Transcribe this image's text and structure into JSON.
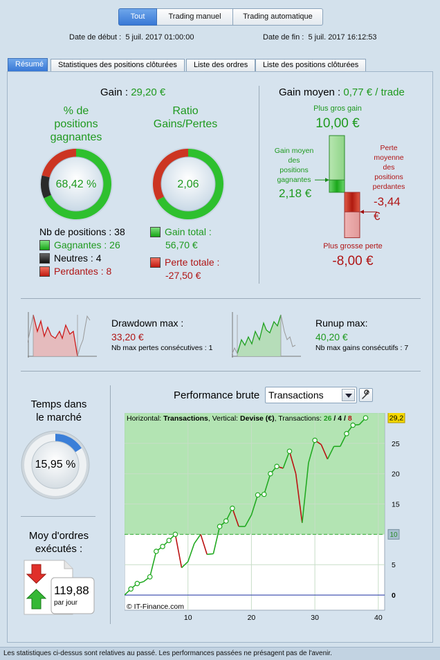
{
  "segments": [
    "Tout",
    "Trading manuel",
    "Trading automatique"
  ],
  "dates": {
    "start_label": "Date de début :",
    "start_value": "5 juil. 2017 01:00:00",
    "end_label": "Date de fin :",
    "end_value": "5 juil. 2017 16:12:53"
  },
  "tabs": [
    "Résumé",
    "Statistiques des positions clôturées",
    "Liste des ordres",
    "Liste des positions clôturées"
  ],
  "gain": {
    "label": "Gain",
    "value": "29,20 €"
  },
  "pct_win": {
    "title_l1": "% de",
    "title_l2": "positions",
    "title_l3": "gagnantes",
    "value": "68,42 %",
    "win": 26,
    "neutral": 4,
    "loss": 8
  },
  "ratio": {
    "title_l1": "Ratio",
    "title_l2": "Gains/Pertes",
    "value": "2,06",
    "gain_amount": 56.7,
    "loss_amount": 27.5
  },
  "positions": {
    "total_label": "Nb de positions : 38",
    "win_label": "Gagnantes : 26",
    "neutral_label": "Neutres : 4",
    "loss_label": "Perdantes : 8"
  },
  "totals": {
    "gain_label": "Gain total :",
    "gain_value": "56,70 €",
    "loss_label": "Perte totale :",
    "loss_value": "-27,50 €"
  },
  "avg_gain": {
    "label": "Gain moyen :",
    "value": "0,77 € / trade",
    "biggest_gain_label": "Plus gros gain",
    "biggest_gain_value": "10,00 €",
    "avg_win_l1": "Gain moyen",
    "avg_win_l2": "des",
    "avg_win_l3": "positions",
    "avg_win_l4": "gagnantes",
    "avg_win_value": "2,18 €",
    "avg_loss_l1": "Perte",
    "avg_loss_l2": "moyenne",
    "avg_loss_l3": "des",
    "avg_loss_l4": "positions",
    "avg_loss_l5": "perdantes",
    "avg_loss_value_l1": "-3,44",
    "avg_loss_value_l2": "€",
    "biggest_loss_label": "Plus grosse perte",
    "biggest_loss_value": "-8,00 €",
    "max_gain": 10.0,
    "avg_win": 2.18,
    "avg_loss": 3.44,
    "max_loss": 8.0
  },
  "drawdown": {
    "label": "Drawdown max :",
    "value": "33,20 €",
    "sub": "Nb max pertes consécutives : 1"
  },
  "runup": {
    "label": "Runup max:",
    "value": "40,20 €",
    "sub": "Nb max gains consécutifs : 7"
  },
  "time_in_market": {
    "title_l1": "Temps dans",
    "title_l2": "le marché",
    "value": "15,95 %",
    "fraction": 0.1595
  },
  "orders": {
    "title_l1": "Moy d'ordres",
    "title_l2": "exécutés :",
    "value": "119,88",
    "unit": "par jour"
  },
  "performance": {
    "title": "Performance brute",
    "dropdown_value": "Transactions",
    "info_h": "Horizontal:",
    "info_h_val": "Transactions",
    "info_v": ", Vertical:",
    "info_v_val": "Devise (€)",
    "info_t": ", Transactions:",
    "tx_win": "26",
    "tx_sep1": " / ",
    "tx_neutral": "4",
    "tx_sep2": " / ",
    "tx_loss": "8",
    "current_label": "29,2",
    "baseline_label": "10",
    "watermark": "© IT-Finance.com"
  },
  "footer": "Les statistiques ci-dessus sont relatives au passé. Les performances passées ne présagent pas de l'avenir.",
  "chart_data": {
    "type": "line",
    "title": "Performance brute",
    "xlabel": "Transactions",
    "ylabel": "Devise (€)",
    "xlim": [
      0,
      41
    ],
    "ylim": [
      -2.5,
      30
    ],
    "x_ticks": [
      10,
      20,
      30,
      40
    ],
    "y_ticks": [
      0,
      5,
      10,
      15,
      20,
      25
    ],
    "baseline": 10,
    "x": [
      0,
      1,
      2,
      3,
      4,
      5,
      6,
      7,
      8,
      9,
      10,
      11,
      12,
      13,
      14,
      15,
      16,
      17,
      18,
      19,
      20,
      21,
      22,
      23,
      24,
      25,
      26,
      27,
      28,
      29,
      30,
      31,
      32,
      33,
      34,
      35,
      36,
      37,
      38
    ],
    "values": [
      0,
      1,
      1.9,
      2.2,
      3,
      7.2,
      8,
      9,
      10,
      4.5,
      5.5,
      8.5,
      10,
      6.7,
      6.8,
      11.3,
      12.2,
      14.3,
      11.3,
      11.3,
      13.2,
      16.5,
      16.6,
      20,
      21.2,
      20.9,
      23.7,
      20,
      11.9,
      21.8,
      25.5,
      24.8,
      22.4,
      24.5,
      24.5,
      26.6,
      28,
      28.1,
      29.2
    ],
    "marker_indices": [
      1,
      2,
      4,
      5,
      6,
      7,
      8,
      15,
      16,
      17,
      21,
      22,
      23,
      24,
      26,
      30,
      35,
      36,
      38
    ],
    "colors": {
      "up": "#22aa22",
      "down": "#bb1111"
    }
  }
}
